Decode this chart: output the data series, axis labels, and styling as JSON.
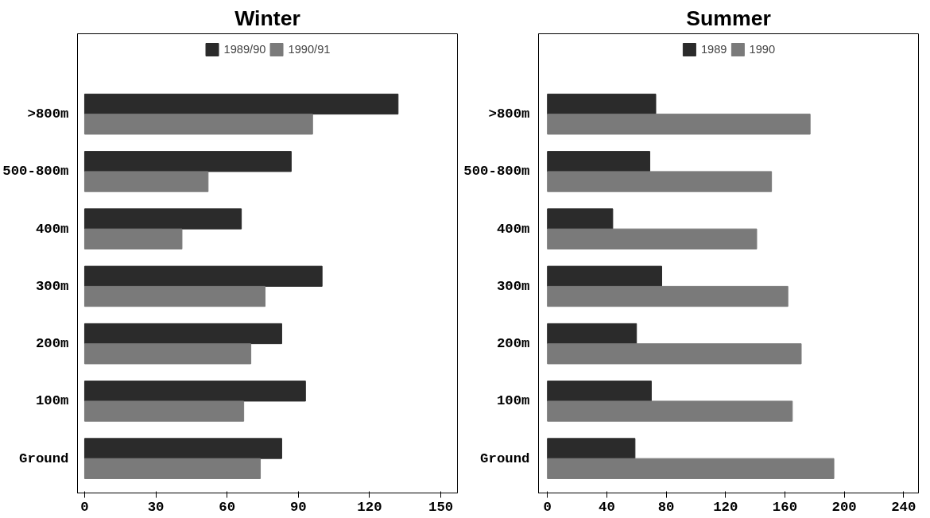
{
  "chart_data": [
    {
      "type": "bar",
      "orientation": "horizontal",
      "title": "Winter",
      "categories": [
        ">800m",
        "500-800m",
        "400m",
        "300m",
        "200m",
        "100m",
        "Ground"
      ],
      "series": [
        {
          "name": "1989/90",
          "color": "#2b2b2b",
          "values": [
            132,
            87,
            66,
            100,
            83,
            93,
            83
          ]
        },
        {
          "name": "1990/91",
          "color": "#7a7a7a",
          "values": [
            96,
            52,
            41,
            76,
            70,
            67,
            74
          ]
        }
      ],
      "xlim": [
        -3,
        157
      ],
      "xticks": [
        0,
        30,
        60,
        90,
        120,
        150
      ],
      "grid": false,
      "legend": "top"
    },
    {
      "type": "bar",
      "orientation": "horizontal",
      "title": "Summer",
      "categories": [
        ">800m",
        "500-800m",
        "400m",
        "300m",
        "200m",
        "100m",
        "Ground"
      ],
      "series": [
        {
          "name": "1989",
          "color": "#2b2b2b",
          "values": [
            73,
            69,
            44,
            77,
            60,
            70,
            59
          ]
        },
        {
          "name": "1990",
          "color": "#7a7a7a",
          "values": [
            177,
            151,
            141,
            162,
            171,
            165,
            193
          ]
        }
      ],
      "xlim": [
        -6,
        250
      ],
      "xticks": [
        0,
        40,
        80,
        120,
        160,
        200,
        240
      ],
      "grid": false,
      "legend": "top"
    }
  ]
}
